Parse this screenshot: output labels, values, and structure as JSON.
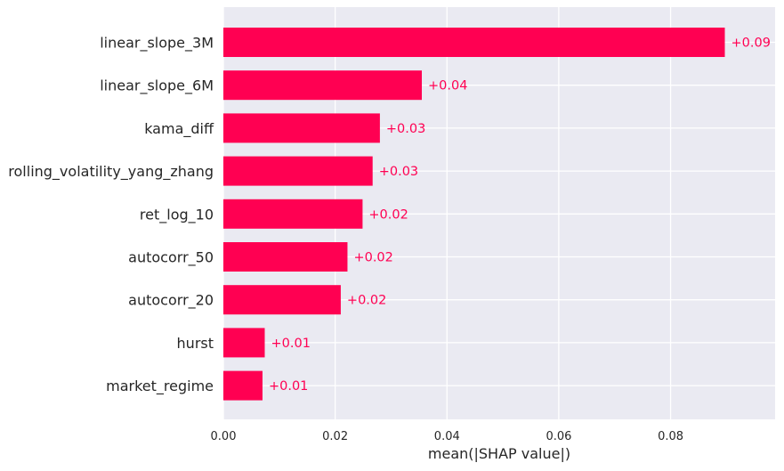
{
  "chart_data": {
    "type": "bar",
    "orientation": "horizontal",
    "title": "",
    "xlabel": "mean(|SHAP value|)",
    "ylabel": "",
    "xlim": [
      0,
      0.0985
    ],
    "xticks": [
      "0.00",
      "0.02",
      "0.04",
      "0.06",
      "0.08"
    ],
    "tick_values": [
      0,
      0.02,
      0.04,
      0.06,
      0.08
    ],
    "categories": [
      "linear_slope_3M",
      "linear_slope_6M",
      "kama_diff",
      "rolling_volatility_yang_zhang",
      "ret_log_10",
      "autocorr_50",
      "autocorr_20",
      "hurst",
      "market_regime"
    ],
    "values": [
      0.0897,
      0.0355,
      0.028,
      0.0267,
      0.0249,
      0.0222,
      0.021,
      0.0074,
      0.007
    ],
    "data_labels": [
      "+0.09",
      "+0.04",
      "+0.03",
      "+0.03",
      "+0.02",
      "+0.02",
      "+0.02",
      "+0.01",
      "+0.01"
    ],
    "grid": true,
    "colors": {
      "bar": "#ff0052",
      "label": "#ff0052",
      "background": "#eaeaf2",
      "grid": "#ffffff",
      "text": "#262626"
    }
  }
}
